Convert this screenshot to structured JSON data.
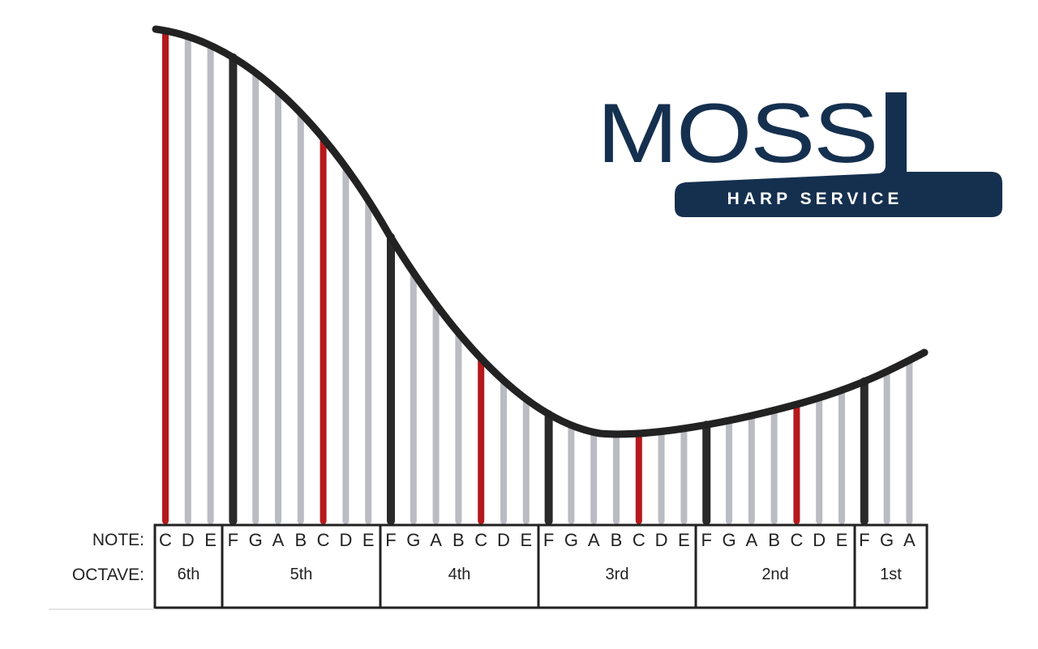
{
  "logo": {
    "name": "MOSS",
    "tagline": "HARP SERVICE",
    "color": "#15304f"
  },
  "table": {
    "note_label": "NOTE:",
    "octave_label": "OCTAVE:"
  },
  "colors": {
    "c_string": "#b5191c",
    "f_string": "#2a2a2a",
    "other_string": "#b9bcc2",
    "curve": "#222222"
  },
  "octaves": [
    {
      "label": "6th",
      "notes": [
        "C",
        "D",
        "E"
      ]
    },
    {
      "label": "5th",
      "notes": [
        "F",
        "G",
        "A",
        "B",
        "C",
        "D",
        "E"
      ]
    },
    {
      "label": "4th",
      "notes": [
        "F",
        "G",
        "A",
        "B",
        "C",
        "D",
        "E"
      ]
    },
    {
      "label": "3rd",
      "notes": [
        "F",
        "G",
        "A",
        "B",
        "C",
        "D",
        "E"
      ]
    },
    {
      "label": "2nd",
      "notes": [
        "F",
        "G",
        "A",
        "B",
        "C",
        "D",
        "E"
      ]
    },
    {
      "label": "1st",
      "notes": [
        "F",
        "G",
        "A"
      ]
    }
  ]
}
